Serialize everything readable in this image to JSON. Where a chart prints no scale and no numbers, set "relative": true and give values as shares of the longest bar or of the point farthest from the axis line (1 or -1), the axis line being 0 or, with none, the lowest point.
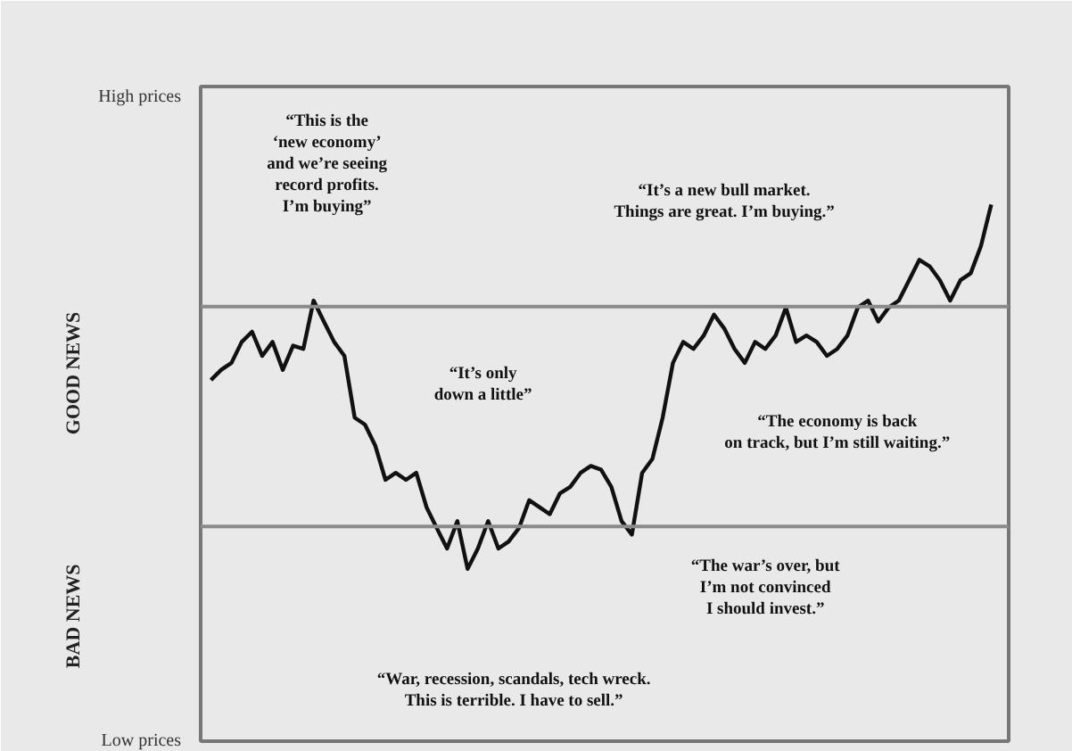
{
  "chart_data": {
    "type": "line",
    "relative": true,
    "color": "#111111",
    "categories": [
      null,
      null,
      null,
      null,
      null,
      null,
      null,
      null,
      null,
      null,
      null,
      null,
      null,
      null,
      null,
      null,
      null,
      null,
      null,
      null,
      null,
      null,
      null,
      null,
      null,
      null,
      null,
      null,
      null,
      null,
      null,
      null,
      null,
      null,
      null,
      null,
      null,
      null,
      null,
      null,
      null,
      null,
      null,
      null,
      null,
      null,
      null,
      null,
      null,
      null,
      null,
      null,
      null,
      null,
      null,
      null,
      null,
      null,
      null,
      null,
      null,
      null,
      null,
      null,
      null,
      null,
      null,
      null,
      null,
      null,
      null,
      null,
      null,
      null,
      null,
      null,
      null
    ],
    "values": [
      0.673,
      0.692,
      0.705,
      0.744,
      0.763,
      0.718,
      0.744,
      0.692,
      0.737,
      0.731,
      0.821,
      0.782,
      0.744,
      0.718,
      0.603,
      0.59,
      0.551,
      0.487,
      0.5,
      0.487,
      0.5,
      0.436,
      0.397,
      0.359,
      0.41,
      0.321,
      0.359,
      0.41,
      0.359,
      0.372,
      0.397,
      0.449,
      0.436,
      0.423,
      0.462,
      0.474,
      0.5,
      0.513,
      0.506,
      0.474,
      0.41,
      0.385,
      0.5,
      0.526,
      0.603,
      0.705,
      0.744,
      0.731,
      0.756,
      0.795,
      0.769,
      0.731,
      0.705,
      0.744,
      0.731,
      0.756,
      0.808,
      0.744,
      0.756,
      0.744,
      0.718,
      0.731,
      0.756,
      0.808,
      0.821,
      0.782,
      0.808,
      0.821,
      0.859,
      0.897,
      0.885,
      0.859,
      0.821,
      0.859,
      0.872,
      0.923,
      1.0
    ],
    "ref_lines": [
      {
        "axis": "y",
        "value": 0.81,
        "color": "#8a8a8a"
      },
      {
        "axis": "y",
        "value": 0.4,
        "color": "#8a8a8a"
      }
    ],
    "annotations": [
      "High prices",
      "Low prices",
      "GOOD NEWS",
      "BAD NEWS",
      "“This is the\n‘new economy’\nand we’re seeing\nrecord profits.\nI’m buying”",
      "“It’s only\ndown a little”",
      "“War, recession, scandals, tech wreck.\nThis is terrible. I have to sell.”",
      "“The war’s over, but\nI’m not convinced\nI should invest.”",
      "“The economy is back\non track, but I’m still waiting.”",
      "“It’s a new bull market.\nThings are great. I’m buying.”"
    ],
    "grid": false
  }
}
